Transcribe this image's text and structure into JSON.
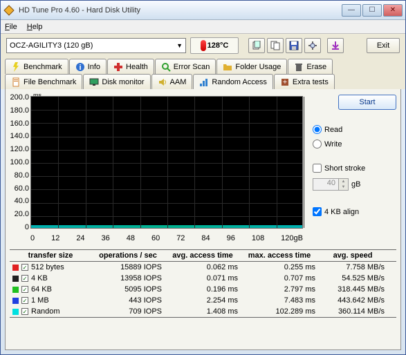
{
  "window": {
    "title": "HD Tune Pro 4.60 - Hard Disk Utility"
  },
  "menu": {
    "file": "File",
    "help": "Help"
  },
  "drive": {
    "selected": "OCZ-AGILITY3 (120 gB)"
  },
  "temperature": {
    "value": "128°C"
  },
  "exit": {
    "label": "Exit"
  },
  "tabs": {
    "row1": [
      {
        "label": "Benchmark",
        "icon": "bolt",
        "color": "#e8d020"
      },
      {
        "label": "Info",
        "icon": "info",
        "color": "#3070d0"
      },
      {
        "label": "Health",
        "icon": "plus",
        "color": "#d03030"
      },
      {
        "label": "Error Scan",
        "icon": "search",
        "color": "#30a030"
      },
      {
        "label": "Folder Usage",
        "icon": "folder",
        "color": "#e0b030"
      },
      {
        "label": "Erase",
        "icon": "trash",
        "color": "#606060"
      }
    ],
    "row2": [
      {
        "label": "File Benchmark",
        "icon": "file",
        "color": "#d08030"
      },
      {
        "label": "Disk monitor",
        "icon": "monitor",
        "color": "#30a060"
      },
      {
        "label": "AAM",
        "icon": "sound",
        "color": "#d0b030"
      },
      {
        "label": "Random Access",
        "icon": "random",
        "color": "#3080d0",
        "active": true
      },
      {
        "label": "Extra tests",
        "icon": "extra",
        "color": "#a05030"
      }
    ]
  },
  "chart": {
    "y_unit": "ms",
    "y_ticks": [
      "200.0",
      "180.0",
      "160.0",
      "140.0",
      "120.0",
      "100.0",
      "80.0",
      "60.0",
      "40.0",
      "20.0",
      "0"
    ],
    "x_ticks": [
      "0",
      "12",
      "24",
      "36",
      "48",
      "60",
      "72",
      "84",
      "96",
      "108",
      "120gB"
    ],
    "bg": "#000000",
    "grid": "#2a2a2a",
    "data_color": "#00ffff"
  },
  "side": {
    "start": "Start",
    "read": "Read",
    "write": "Write",
    "short_stroke": "Short stroke",
    "stroke_val": "40",
    "stroke_unit": "gB",
    "align": "4 KB align"
  },
  "results": {
    "headers": {
      "size": "transfer size",
      "ops": "operations / sec",
      "avg": "avg. access time",
      "max": "max. access time",
      "spd": "avg. speed"
    },
    "rows": [
      {
        "color": "#e02020",
        "size": "512 bytes",
        "ops": "15889 IOPS",
        "avg": "0.062 ms",
        "max": "0.255 ms",
        "spd": "7.758 MB/s"
      },
      {
        "color": "#202020",
        "size": "4 KB",
        "ops": "13958 IOPS",
        "avg": "0.071 ms",
        "max": "0.707 ms",
        "spd": "54.525 MB/s"
      },
      {
        "color": "#20c020",
        "size": "64 KB",
        "ops": "5095 IOPS",
        "avg": "0.196 ms",
        "max": "2.797 ms",
        "spd": "318.445 MB/s"
      },
      {
        "color": "#2040e0",
        "size": "1 MB",
        "ops": "443 IOPS",
        "avg": "2.254 ms",
        "max": "7.483 ms",
        "spd": "443.642 MB/s"
      },
      {
        "color": "#00e0e0",
        "size": "Random",
        "ops": "709 IOPS",
        "avg": "1.408 ms",
        "max": "102.289 ms",
        "spd": "360.114 MB/s"
      }
    ]
  }
}
